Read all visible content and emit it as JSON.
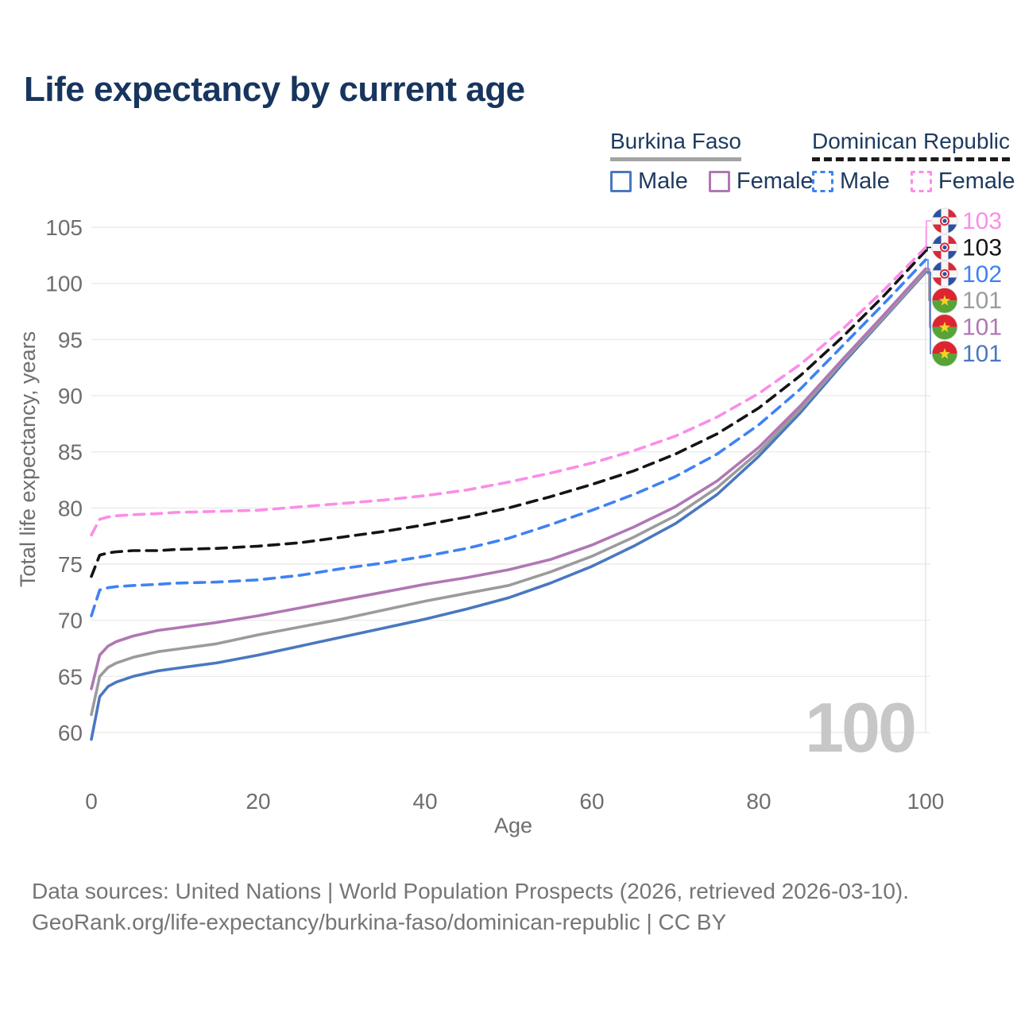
{
  "title": "Life expectancy by current age",
  "watermark": "100",
  "legend": {
    "groups": [
      {
        "label": "Burkina Faso",
        "line_style": "solid",
        "underline_color": "#a3a3a3",
        "items": [
          {
            "label": "Male",
            "color": "#4a78c0",
            "dashed": false
          },
          {
            "label": "Female",
            "color": "#b077b4",
            "dashed": false
          }
        ]
      },
      {
        "label": "Dominican Republic",
        "line_style": "dashed",
        "underline_color": "#1a1a1a",
        "items": [
          {
            "label": "Male",
            "color": "#3e82f4",
            "dashed": true
          },
          {
            "label": "Female",
            "color": "#fb8de8",
            "dashed": true
          }
        ]
      }
    ]
  },
  "footer": {
    "line1": "Data sources: United Nations | World Population Prospects (2026, retrieved 2026-03-10).",
    "line2": "GeoRank.org/life-expectancy/burkina-faso/dominican-republic | CC BY"
  },
  "chart_data": {
    "type": "line",
    "title": "Life expectancy by current age",
    "xlabel": "Age",
    "ylabel": "Total life expectancy, years",
    "xlim": [
      0,
      100
    ],
    "ylim": [
      60,
      105
    ],
    "x_ticks": [
      0,
      20,
      40,
      60,
      80,
      100
    ],
    "y_ticks": [
      60,
      65,
      70,
      75,
      80,
      85,
      90,
      95,
      100,
      105
    ],
    "grid": "horizontal",
    "legend_position": "top-right",
    "ages": [
      0,
      1,
      2,
      3,
      5,
      8,
      10,
      15,
      20,
      25,
      30,
      35,
      40,
      45,
      50,
      55,
      60,
      65,
      70,
      75,
      80,
      85,
      90,
      95,
      100
    ],
    "series": [
      {
        "name": "Burkina Faso Male",
        "color": "#4a78c0",
        "dash": "solid",
        "values": [
          59.4,
          63.2,
          64.1,
          64.5,
          65.0,
          65.5,
          65.7,
          66.2,
          66.9,
          67.7,
          68.5,
          69.3,
          70.1,
          71.0,
          72.0,
          73.3,
          74.8,
          76.6,
          78.6,
          81.2,
          84.6,
          88.5,
          92.8,
          96.9,
          101.0
        ]
      },
      {
        "name": "Burkina Faso Combined",
        "color": "#9b9b9b",
        "dash": "solid",
        "values": [
          61.6,
          65.0,
          65.8,
          66.2,
          66.7,
          67.2,
          67.4,
          67.9,
          68.7,
          69.4,
          70.1,
          70.9,
          71.7,
          72.4,
          73.1,
          74.3,
          75.7,
          77.4,
          79.3,
          81.8,
          85.0,
          88.8,
          93.0,
          97.0,
          101.1
        ]
      },
      {
        "name": "Burkina Faso Female",
        "color": "#b077b4",
        "dash": "solid",
        "values": [
          63.9,
          66.9,
          67.7,
          68.1,
          68.6,
          69.1,
          69.3,
          69.8,
          70.4,
          71.1,
          71.8,
          72.5,
          73.2,
          73.8,
          74.5,
          75.4,
          76.7,
          78.3,
          80.1,
          82.4,
          85.4,
          89.1,
          93.2,
          97.2,
          101.3
        ]
      },
      {
        "name": "Dominican Republic Male",
        "color": "#3e82f4",
        "dash": "dashed",
        "values": [
          70.4,
          72.7,
          72.9,
          73.0,
          73.1,
          73.2,
          73.3,
          73.4,
          73.6,
          74.0,
          74.6,
          75.1,
          75.7,
          76.4,
          77.3,
          78.5,
          79.8,
          81.2,
          82.8,
          84.8,
          87.4,
          90.6,
          94.4,
          98.2,
          102.1
        ]
      },
      {
        "name": "Dominican Republic Combined",
        "color": "#141414",
        "dash": "dashed",
        "values": [
          73.9,
          75.8,
          76.0,
          76.1,
          76.2,
          76.2,
          76.3,
          76.4,
          76.6,
          76.9,
          77.4,
          77.9,
          78.5,
          79.2,
          80.0,
          81.0,
          82.1,
          83.3,
          84.8,
          86.6,
          88.9,
          91.8,
          95.2,
          98.9,
          102.9
        ]
      },
      {
        "name": "Dominican Republic Female",
        "color": "#fb8de8",
        "dash": "dashed",
        "values": [
          77.6,
          79.0,
          79.2,
          79.3,
          79.4,
          79.5,
          79.6,
          79.7,
          79.8,
          80.1,
          80.4,
          80.7,
          81.1,
          81.6,
          82.3,
          83.1,
          84.0,
          85.1,
          86.4,
          88.1,
          90.2,
          92.8,
          95.9,
          99.4,
          103.2
        ]
      }
    ],
    "end_labels": [
      {
        "value": "103",
        "flag": "dominican-republic",
        "series_index": 5
      },
      {
        "value": "103",
        "flag": "dominican-republic",
        "series_index": 4
      },
      {
        "value": "102",
        "flag": "dominican-republic",
        "series_index": 3
      },
      {
        "value": "101",
        "flag": "burkina-faso",
        "series_index": 1
      },
      {
        "value": "101",
        "flag": "burkina-faso",
        "series_index": 2
      },
      {
        "value": "101",
        "flag": "burkina-faso",
        "series_index": 0
      }
    ],
    "flag_colors": {
      "burkina_red": "#de2431",
      "burkina_green": "#56a337",
      "burkina_star": "#f5d328",
      "dominican_blue": "#2b51a3",
      "dominican_red": "#d62939",
      "dominican_white": "#f7f7f7"
    },
    "grid_color": "#ebebeb",
    "tick_text_color": "#6e6e6e",
    "watermark_color": "#c7c7c7"
  }
}
